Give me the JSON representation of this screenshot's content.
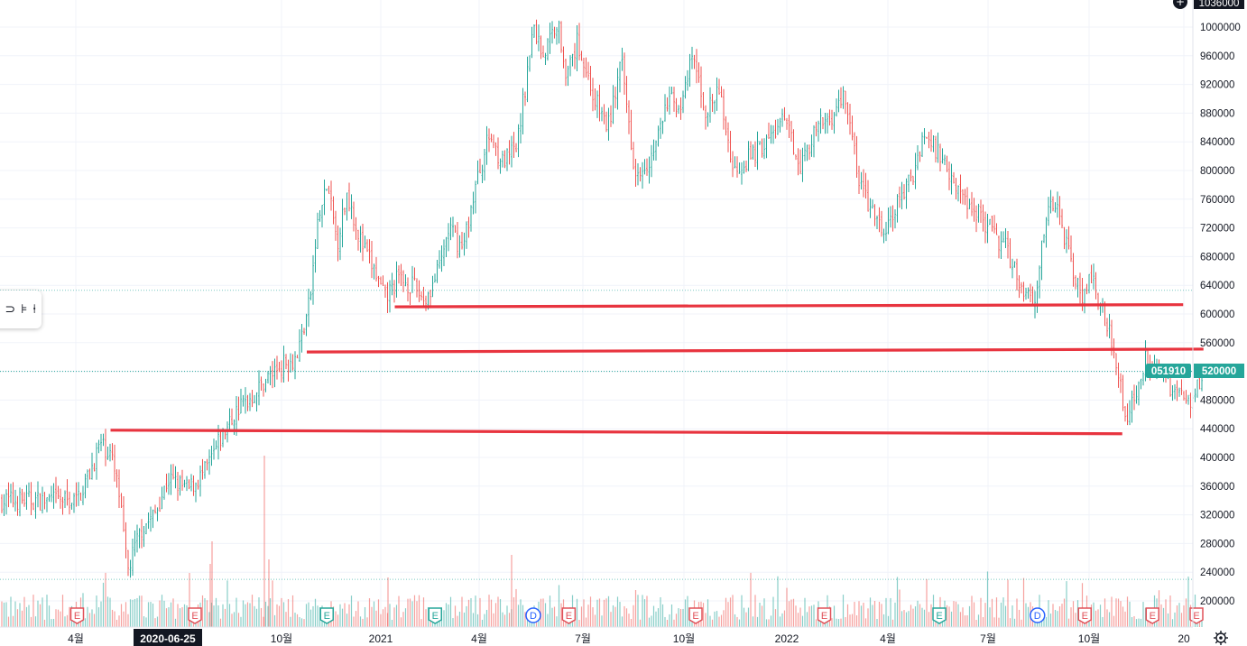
{
  "chart_data": {
    "type": "candlestick",
    "symbol": "051910",
    "last_price_label": "520000",
    "top_price_label": "1036000",
    "ylim": [
      170000,
      1040000
    ],
    "y_ticks": [
      "1000000",
      "960000",
      "920000",
      "880000",
      "840000",
      "800000",
      "760000",
      "720000",
      "680000",
      "640000",
      "600000",
      "560000",
      "520000",
      "480000",
      "440000",
      "400000",
      "360000",
      "320000",
      "280000",
      "240000",
      "200000"
    ],
    "x_ticks": [
      "4월",
      "10월",
      "2021",
      "4월",
      "7월",
      "10월",
      "2022",
      "4월",
      "7월",
      "10월",
      "20"
    ],
    "crosshair_date": "2020-06-25",
    "dotted_levels": [
      633000,
      520000,
      230000
    ],
    "price_path": [
      [
        0,
        340000
      ],
      [
        0.4,
        380000
      ],
      [
        0.7,
        420000
      ],
      [
        1.0,
        405000
      ],
      [
        1.25,
        350000
      ],
      [
        1.5,
        240000
      ],
      [
        1.9,
        300000
      ],
      [
        2.3,
        320000
      ],
      [
        2.7,
        370000
      ],
      [
        3.3,
        355000
      ],
      [
        3.8,
        380000
      ],
      [
        4.3,
        430000
      ],
      [
        4.8,
        470000
      ],
      [
        5.3,
        490000
      ],
      [
        5.6,
        510000
      ],
      [
        6.1,
        530000
      ],
      [
        6.5,
        540000
      ],
      [
        6.9,
        620000
      ],
      [
        7.1,
        720000
      ],
      [
        7.4,
        780000
      ],
      [
        7.7,
        700000
      ],
      [
        8.0,
        770000
      ],
      [
        8.4,
        700000
      ],
      [
        8.8,
        660000
      ],
      [
        9.1,
        620000
      ],
      [
        9.5,
        650000
      ],
      [
        9.9,
        640000
      ],
      [
        10.3,
        620000
      ],
      [
        10.7,
        660000
      ],
      [
        11.0,
        720000
      ],
      [
        11.4,
        690000
      ],
      [
        11.8,
        780000
      ],
      [
        12.2,
        850000
      ],
      [
        12.6,
        810000
      ],
      [
        13.0,
        830000
      ],
      [
        13.5,
        1000000
      ],
      [
        13.8,
        960000
      ],
      [
        14.2,
        1010000
      ],
      [
        14.5,
        930000
      ],
      [
        14.8,
        980000
      ],
      [
        15.3,
        900000
      ],
      [
        15.7,
        860000
      ],
      [
        16.1,
        950000
      ],
      [
        16.5,
        800000
      ],
      [
        17.0,
        820000
      ],
      [
        17.5,
        900000
      ],
      [
        17.9,
        890000
      ],
      [
        18.2,
        960000
      ],
      [
        18.6,
        880000
      ],
      [
        19.0,
        910000
      ],
      [
        19.4,
        800000
      ],
      [
        19.9,
        820000
      ],
      [
        20.4,
        840000
      ],
      [
        20.9,
        870000
      ],
      [
        21.4,
        810000
      ],
      [
        21.9,
        860000
      ],
      [
        22.4,
        880000
      ],
      [
        22.7,
        910000
      ],
      [
        23.1,
        790000
      ],
      [
        23.5,
        740000
      ],
      [
        23.9,
        710000
      ],
      [
        24.3,
        760000
      ],
      [
        24.7,
        790000
      ],
      [
        25.0,
        850000
      ],
      [
        25.4,
        830000
      ],
      [
        25.8,
        800000
      ],
      [
        26.2,
        760000
      ],
      [
        26.7,
        740000
      ],
      [
        27.1,
        710000
      ],
      [
        27.5,
        690000
      ],
      [
        27.9,
        640000
      ],
      [
        28.3,
        620000
      ],
      [
        28.6,
        720000
      ],
      [
        28.9,
        760000
      ],
      [
        29.3,
        690000
      ],
      [
        29.7,
        620000
      ],
      [
        30.0,
        650000
      ],
      [
        30.3,
        610000
      ],
      [
        30.6,
        560000
      ],
      [
        30.8,
        520000
      ],
      [
        31.0,
        450000
      ],
      [
        31.3,
        490000
      ],
      [
        31.6,
        540000
      ],
      [
        31.9,
        530000
      ],
      [
        32.3,
        500000
      ],
      [
        32.6,
        490000
      ],
      [
        32.9,
        480000
      ],
      [
        33.3,
        520000
      ]
    ],
    "support_lines": [
      {
        "x1": 9.4,
        "y1": 610000,
        "x2": 32.7,
        "y2": 613000
      },
      {
        "x1": 6.8,
        "y1": 547000,
        "x2": 33.3,
        "y2": 551000
      },
      {
        "x1": 1.0,
        "y1": 438000,
        "x2": 30.9,
        "y2": 433000
      }
    ],
    "event_markers": [
      {
        "type": "E",
        "x": 0.12,
        "color": "#e05058"
      },
      {
        "type": "E",
        "x": 3.6,
        "color": "#e05058"
      },
      {
        "type": "E",
        "x": 7.5,
        "color": "#26a69a"
      },
      {
        "type": "E",
        "x": 10.7,
        "color": "#26a69a"
      },
      {
        "type": "D",
        "x": 13.6,
        "color": "#2962ff"
      },
      {
        "type": "E",
        "x": 14.65,
        "color": "#e05058"
      },
      {
        "type": "E",
        "x": 18.4,
        "color": "#e05058"
      },
      {
        "type": "E",
        "x": 22.2,
        "color": "#e05058"
      },
      {
        "type": "E",
        "x": 25.6,
        "color": "#26a69a"
      },
      {
        "type": "D",
        "x": 28.5,
        "color": "#2962ff"
      },
      {
        "type": "E",
        "x": 29.9,
        "color": "#e05058"
      },
      {
        "type": "E",
        "x": 31.9,
        "color": "#e05058"
      },
      {
        "type": "E",
        "x": 33.2,
        "color": "#e05058"
      },
      {
        "type": "E",
        "x": 37.7,
        "color": "#e040fb"
      }
    ]
  },
  "colors": {
    "up": "#26a69a",
    "down": "#ef5350",
    "line": "#e8343f",
    "grid": "#f0f3fa",
    "axis_text": "#131722",
    "label_bg": "#26a69a"
  },
  "toolbox": {
    "icons": [
      "magnet-icon",
      "flag-icon",
      "pin-icon"
    ],
    "glyphs": [
      "⊃",
      "⊧",
      "⍿"
    ]
  }
}
